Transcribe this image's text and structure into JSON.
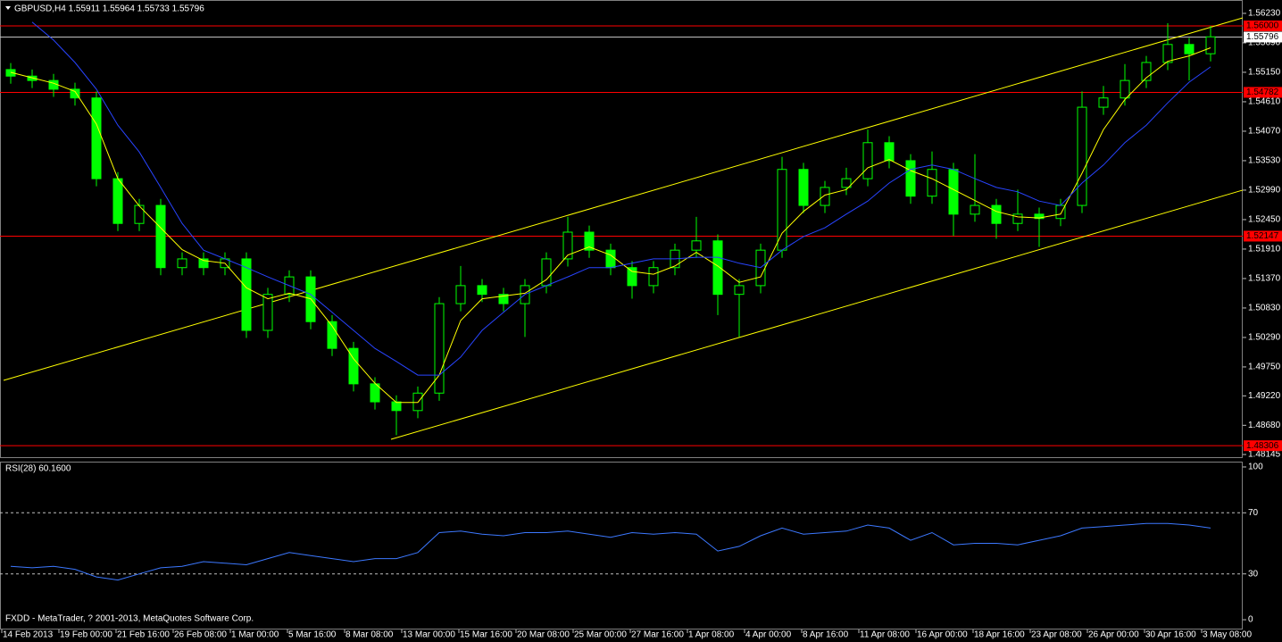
{
  "chart_data": [
    {
      "type": "candlestick",
      "title": "GBPUSD,H4  1.55911 1.55964 1.55733 1.55796",
      "color": "#00ff00",
      "xlim": [
        0,
        348
      ],
      "ylim": [
        1.48096,
        1.56475
      ],
      "yticks": [
        {
          "value": 1.5623,
          "label": "1.56230"
        },
        {
          "value": 1.5569,
          "label": "1.55690"
        },
        {
          "value": 1.5515,
          "label": "1.55150"
        },
        {
          "value": 1.5461,
          "label": "1.54610"
        },
        {
          "value": 1.5407,
          "label": "1.54070"
        },
        {
          "value": 1.5353,
          "label": "1.53530"
        },
        {
          "value": 1.5299,
          "label": "1.52990"
        },
        {
          "value": 1.5245,
          "label": "1.52450"
        },
        {
          "value": 1.5191,
          "label": "1.51910"
        },
        {
          "value": 1.5137,
          "label": "1.51370"
        },
        {
          "value": 1.5083,
          "label": "1.50830"
        },
        {
          "value": 1.5029,
          "label": "1.50290"
        },
        {
          "value": 1.4975,
          "label": "1.49750"
        },
        {
          "value": 1.4922,
          "label": "1.49220"
        },
        {
          "value": 1.4868,
          "label": "1.48680"
        },
        1.48145
      ],
      "x": [
        3,
        9,
        15,
        21,
        27,
        33,
        39,
        45,
        51,
        57,
        63,
        69,
        75,
        81,
        87,
        93,
        99,
        105,
        111,
        117,
        123,
        129,
        135,
        141,
        147,
        153,
        159,
        165,
        171,
        177,
        183,
        189,
        195,
        201,
        207,
        213,
        219,
        225,
        231,
        237,
        243,
        249,
        255,
        261,
        267,
        273,
        279,
        285,
        291,
        297,
        303,
        309,
        315,
        321,
        327,
        333,
        339
      ],
      "open": [
        1.552,
        1.5508,
        1.55,
        1.5484,
        1.5468,
        1.532,
        1.5238,
        1.5271,
        1.5157,
        1.5173,
        1.5157,
        1.5173,
        1.5042,
        1.5108,
        1.514,
        1.5058,
        1.5009,
        1.4944,
        1.4911,
        1.4895,
        1.4927,
        1.5091,
        1.5124,
        1.5108,
        1.5091,
        1.5124,
        1.5173,
        1.5222,
        1.5189,
        1.5157,
        1.5124,
        1.5157,
        1.5189,
        1.5206,
        1.5108,
        1.5124,
        1.5189,
        1.5337,
        1.5271,
        1.5304,
        1.532,
        1.5386,
        1.5353,
        1.5288,
        1.5337,
        1.5255,
        1.5271,
        1.5238,
        1.5255,
        1.5247,
        1.5271,
        1.5451,
        1.5468,
        1.55,
        1.5533,
        1.5566,
        1.5549
      ],
      "high": [
        1.5532,
        1.552,
        1.5512,
        1.5496,
        1.548,
        1.5332,
        1.5283,
        1.5283,
        1.5185,
        1.5185,
        1.5185,
        1.5185,
        1.512,
        1.5152,
        1.5152,
        1.507,
        1.5021,
        1.4956,
        1.4923,
        1.4939,
        1.5103,
        1.516,
        1.5136,
        1.512,
        1.5136,
        1.5185,
        1.525,
        1.5234,
        1.5201,
        1.5169,
        1.5169,
        1.5201,
        1.525,
        1.5218,
        1.5136,
        1.5201,
        1.536,
        1.5349,
        1.5316,
        1.534,
        1.541,
        1.5398,
        1.5365,
        1.537,
        1.5349,
        1.5365,
        1.5283,
        1.53,
        1.5267,
        1.5283,
        1.548,
        1.549,
        1.553,
        1.5545,
        1.5605,
        1.5578,
        1.56
      ],
      "low": [
        1.5494,
        1.5486,
        1.547,
        1.5454,
        1.5306,
        1.5224,
        1.5224,
        1.5143,
        1.5143,
        1.5143,
        1.5143,
        1.5028,
        1.5028,
        1.5094,
        1.5044,
        1.4995,
        1.493,
        1.4897,
        1.485,
        1.4881,
        1.4913,
        1.5077,
        1.5094,
        1.5077,
        1.503,
        1.511,
        1.5159,
        1.5175,
        1.5143,
        1.51,
        1.511,
        1.5143,
        1.5175,
        1.507,
        1.503,
        1.511,
        1.5175,
        1.5257,
        1.5257,
        1.529,
        1.5306,
        1.5339,
        1.5274,
        1.5274,
        1.5215,
        1.5241,
        1.521,
        1.5224,
        1.5195,
        1.5233,
        1.5257,
        1.5437,
        1.5454,
        1.5486,
        1.5519,
        1.55,
        1.5535
      ],
      "close": [
        1.5508,
        1.55,
        1.5484,
        1.5468,
        1.532,
        1.5238,
        1.5271,
        1.5157,
        1.5173,
        1.5157,
        1.5173,
        1.5042,
        1.5108,
        1.514,
        1.5058,
        1.5009,
        1.4944,
        1.4911,
        1.4895,
        1.4927,
        1.5091,
        1.5124,
        1.5108,
        1.5091,
        1.5124,
        1.5173,
        1.5222,
        1.5189,
        1.5157,
        1.5124,
        1.5157,
        1.5189,
        1.5206,
        1.5108,
        1.5124,
        1.5189,
        1.5337,
        1.5271,
        1.5304,
        1.532,
        1.5386,
        1.5353,
        1.5288,
        1.5337,
        1.5255,
        1.5271,
        1.5238,
        1.5255,
        1.5247,
        1.5271,
        1.5451,
        1.5468,
        1.55,
        1.5533,
        1.5566,
        1.5549,
        1.558
      ],
      "series": [
        {
          "color": "#ffff00",
          "values": [
            1.5515,
            1.5505,
            1.5495,
            1.548,
            1.542,
            1.532,
            1.527,
            1.523,
            1.519,
            1.517,
            1.5165,
            1.512,
            1.51,
            1.511,
            1.51,
            1.505,
            1.499,
            1.4945,
            1.491,
            1.491,
            1.496,
            1.506,
            1.51,
            1.5105,
            1.511,
            1.5135,
            1.518,
            1.5195,
            1.518,
            1.515,
            1.5145,
            1.516,
            1.5185,
            1.516,
            1.513,
            1.514,
            1.522,
            1.526,
            1.529,
            1.53,
            1.534,
            1.5355,
            1.5335,
            1.532,
            1.53,
            1.528,
            1.526,
            1.525,
            1.5248,
            1.5255,
            1.533,
            1.541,
            1.5465,
            1.5505,
            1.5535,
            1.5545,
            1.556
          ]
        },
        {
          "color": "#2844ff",
          "values": [
            null,
            1.5607,
            1.5574,
            1.5533,
            1.5484,
            1.5418,
            1.5369,
            1.5304,
            1.5238,
            1.5189,
            1.5173,
            1.5157,
            1.514,
            1.5124,
            1.5108,
            1.5075,
            1.5042,
            1.5009,
            1.4985,
            1.496,
            1.496,
            1.4993,
            1.5042,
            1.5075,
            1.5108,
            1.5124,
            1.514,
            1.5157,
            1.5157,
            1.5165,
            1.5173,
            1.5173,
            1.5176,
            1.5176,
            1.5165,
            1.5157,
            1.5189,
            1.5214,
            1.523,
            1.5255,
            1.5279,
            1.5312,
            1.5337,
            1.5345,
            1.5337,
            1.532,
            1.5304,
            1.5296,
            1.5279,
            1.5271,
            1.5312,
            1.5345,
            1.5386,
            1.5418,
            1.5459,
            1.5497,
            1.5525
          ]
        }
      ],
      "trendlines": [
        {
          "color": "#ffff00",
          "x": [
            1,
            348
          ],
          "y": [
            1.49503,
            1.56148
          ]
        },
        {
          "color": "#ffff00",
          "x": [
            109.5,
            348
          ],
          "y": [
            1.48423,
            1.5299
          ]
        }
      ],
      "level_color": "#ff0000",
      "levels": [
        {
          "value": 1.56,
          "label": "1.56000"
        },
        {
          "value": 1.54782,
          "label": "1.54782"
        },
        {
          "value": 1.52147,
          "label": "1.52147"
        },
        {
          "value": 1.48306,
          "label": "1.48306"
        }
      ],
      "current_color": "#c0c0c0",
      "current": {
        "value": 1.55796,
        "label": "1.55796"
      }
    },
    {
      "type": "line",
      "title": "RSI(28) 60.1600",
      "annotation": "FXDD - MetaTrader, ? 2001-2013, MetaQuotes Software Corp.",
      "xlim": [
        0,
        348
      ],
      "xticks": [
        {
          "value": 0.5,
          "label": "14 Feb 2013"
        },
        {
          "value": 16.5,
          "label": "19 Feb 00:00"
        },
        {
          "value": 32.5,
          "label": "21 Feb 16:00"
        },
        {
          "value": 48.5,
          "label": "26 Feb 08:00"
        },
        {
          "value": 64.5,
          "label": "1 Mar 00:00"
        },
        {
          "value": 80.5,
          "label": "5 Mar 16:00"
        },
        {
          "value": 96.5,
          "label": "8 Mar 08:00"
        },
        {
          "value": 112.5,
          "label": "13 Mar 00:00"
        },
        {
          "value": 128.5,
          "label": "15 Mar 16:00"
        },
        {
          "value": 144.5,
          "label": "20 Mar 08:00"
        },
        {
          "value": 160.5,
          "label": "25 Mar 00:00"
        },
        {
          "value": 176.5,
          "label": "27 Mar 16:00"
        },
        {
          "value": 192.5,
          "label": "1 Apr 08:00"
        },
        {
          "value": 208.5,
          "label": "4 Apr 00:00"
        },
        {
          "value": 224.5,
          "label": "8 Apr 16:00"
        },
        {
          "value": 240.5,
          "label": "11 Apr 08:00"
        },
        {
          "value": 256.5,
          "label": "16 Apr 00:00"
        },
        {
          "value": 272.5,
          "label": "18 Apr 16:00"
        },
        {
          "value": 288.5,
          "label": "23 Apr 08:00"
        },
        {
          "value": 304.5,
          "label": "26 Apr 00:00"
        },
        {
          "value": 320.5,
          "label": "30 Apr 16:00"
        },
        {
          "value": 336.5,
          "label": "3 May 08:00"
        }
      ],
      "ylim": [
        -6.4,
        102.9
      ],
      "yticks": [
        100,
        70,
        30,
        0
      ],
      "levels": [
        70,
        30
      ],
      "x": [
        3,
        9,
        15,
        21,
        27,
        33,
        39,
        45,
        51,
        57,
        63,
        69,
        75,
        81,
        87,
        93,
        99,
        105,
        111,
        117,
        123,
        129,
        135,
        141,
        147,
        153,
        159,
        165,
        171,
        177,
        183,
        189,
        195,
        201,
        207,
        213,
        219,
        225,
        231,
        237,
        243,
        249,
        255,
        261,
        267,
        273,
        279,
        285,
        291,
        297,
        303,
        309,
        315,
        321,
        327,
        333,
        339
      ],
      "series": [
        {
          "color": "#3c78ff",
          "values": [
            35,
            34,
            35,
            33,
            28,
            26,
            30,
            34,
            35,
            38,
            37,
            36,
            40,
            44,
            42,
            40,
            38,
            40,
            40,
            44,
            57,
            58,
            56,
            55,
            57,
            57,
            58,
            56,
            54,
            57,
            56,
            57,
            56,
            45,
            48,
            55,
            60,
            56,
            57,
            58,
            62,
            60,
            52,
            57,
            49,
            50,
            50,
            49,
            52,
            55,
            60,
            61,
            62,
            63,
            63,
            62,
            60
          ]
        }
      ]
    }
  ]
}
